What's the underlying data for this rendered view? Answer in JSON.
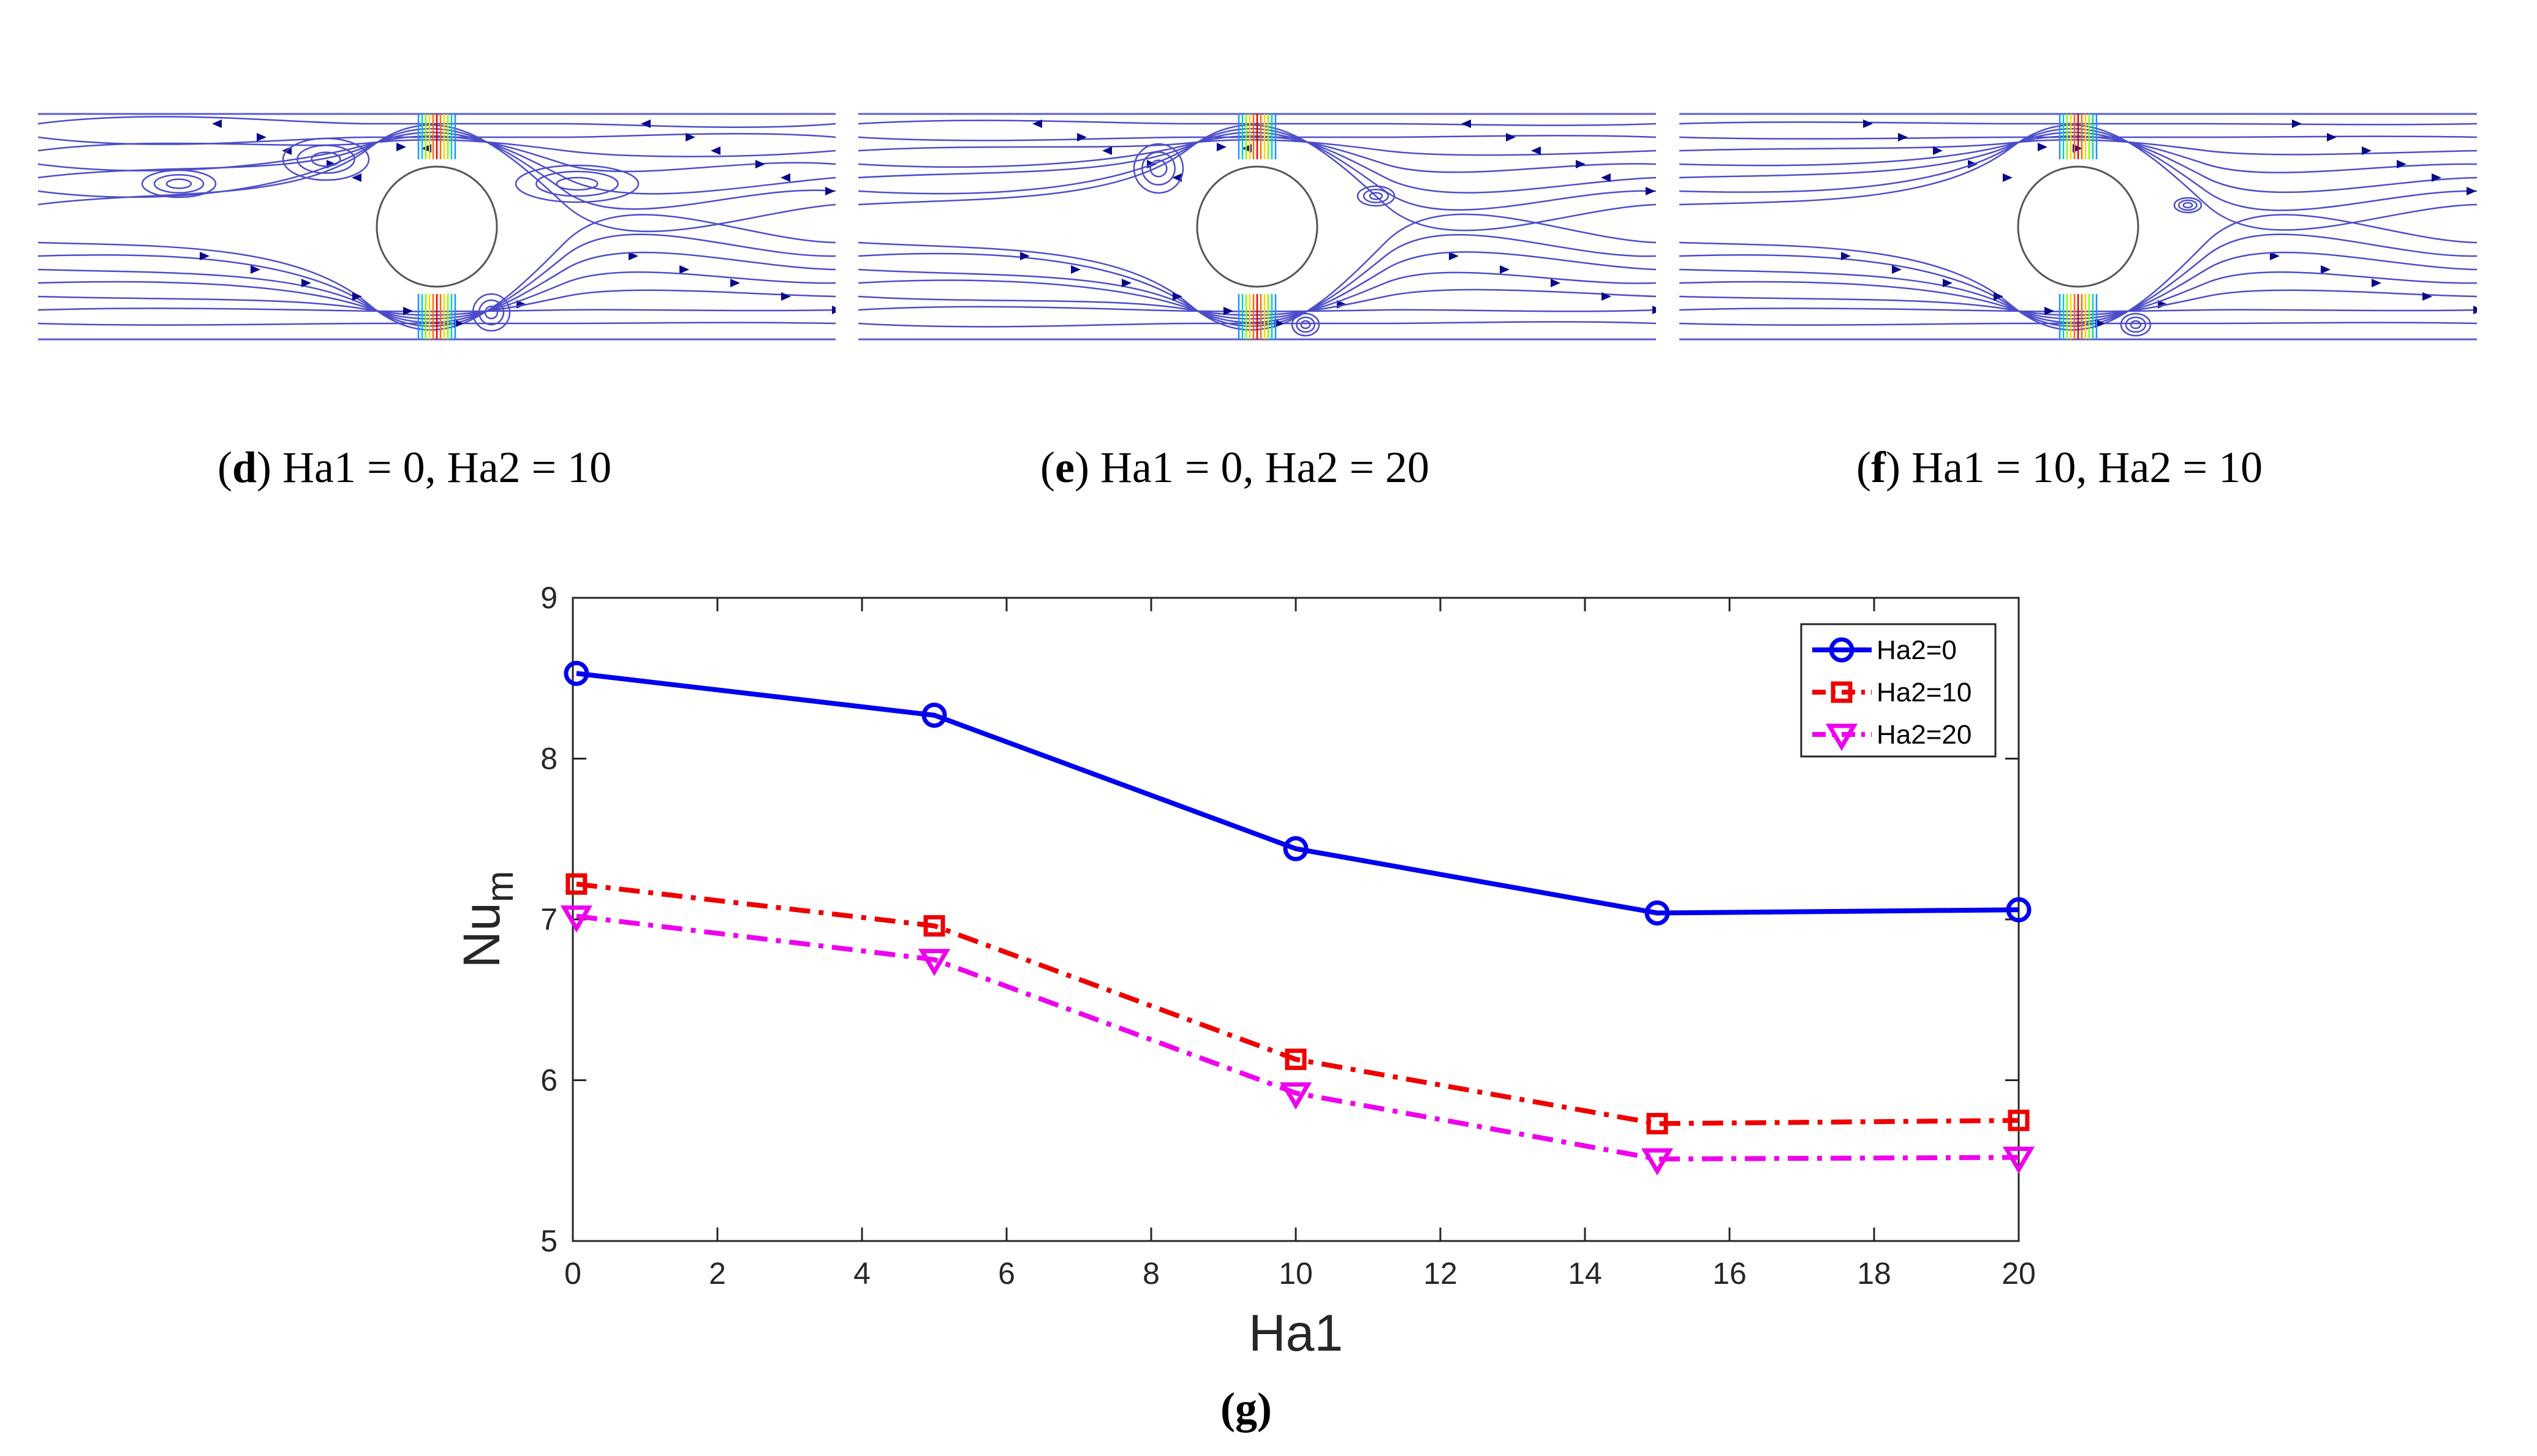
{
  "panels": [
    {
      "id": "d",
      "letter": "d",
      "label": " Ha1 = 0, Ha2 = 10"
    },
    {
      "id": "e",
      "letter": "e",
      "label": " Ha1 = 0, Ha2 = 20"
    },
    {
      "id": "f",
      "letter": "f",
      "label": " Ha1 = 10, Ha2 = 10"
    }
  ],
  "caption_g": "g",
  "chart_data": {
    "type": "line",
    "title": "",
    "xlabel": "Ha1",
    "ylabel": "Nu",
    "ylabel_sub": "m",
    "x": [
      0,
      5,
      10,
      15,
      20
    ],
    "xlim": [
      0,
      20
    ],
    "ylim": [
      5,
      9
    ],
    "xticks": [
      0,
      2,
      4,
      6,
      8,
      10,
      12,
      14,
      16,
      18,
      20
    ],
    "yticks": [
      5,
      6,
      7,
      8,
      9
    ],
    "legend_position": "top-right",
    "series": [
      {
        "name": "Ha2=0",
        "values": [
          8.53,
          8.27,
          7.44,
          7.04,
          7.06
        ],
        "color": "#0000ee",
        "marker": "circle",
        "dash": "solid"
      },
      {
        "name": "Ha2=10",
        "values": [
          7.22,
          6.96,
          6.13,
          5.73,
          5.75
        ],
        "color": "#ee0000",
        "marker": "square",
        "dash": "dashdot"
      },
      {
        "name": "Ha2=20",
        "values": [
          7.02,
          6.75,
          5.92,
          5.51,
          5.52
        ],
        "color": "#ee00ee",
        "marker": "triangle-down",
        "dash": "dashdot"
      }
    ]
  }
}
